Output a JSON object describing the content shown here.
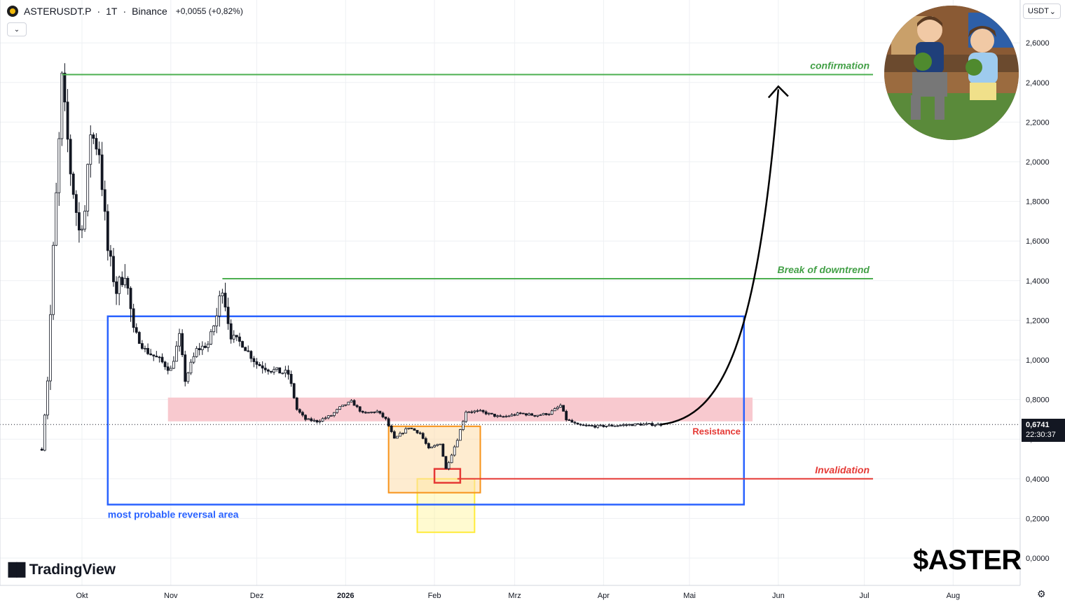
{
  "header": {
    "symbol": "ASTERUSDT.P",
    "separator1": "·",
    "interval": "1T",
    "separator2": "·",
    "exchange": "Binance",
    "change": "+0,0055 (+0,82%)",
    "collapse_icon": "chevron-down-icon"
  },
  "currency_selector": {
    "label": "USDT",
    "icon": "chevron-down-icon"
  },
  "price_tag": {
    "price": "0,6741",
    "countdown": "22:30:37"
  },
  "watermark": {
    "logo_text": "TradingView",
    "ticker_tag": "$ASTER"
  },
  "colors": {
    "candle": "#131722",
    "green_line": "#4caf50",
    "green_text": "#43a047",
    "red": "#e53935",
    "blue_box": "#2962ff",
    "pink_zone": "#f8c9cf",
    "orange_box": "#f7931a",
    "yellow_box": "#ffeb3b",
    "grid": "#eef0f3"
  },
  "chart_data": {
    "type": "candlestick",
    "y_axis": {
      "side": "right",
      "ylim": [
        -0.1,
        2.75
      ],
      "ticks": [
        "0,0000",
        "0,2000",
        "0,4000",
        "0,6000",
        "0,8000",
        "1,0000",
        "1,2000",
        "1,4000",
        "1,6000",
        "1,8000",
        "2,0000",
        "2,2000",
        "2,4000",
        "2,6000"
      ],
      "tick_values": [
        0,
        0.2,
        0.4,
        0.6,
        0.8,
        1.0,
        1.2,
        1.4,
        1.6,
        1.8,
        2.0,
        2.2,
        2.4,
        2.6
      ]
    },
    "x_axis": {
      "ticks": [
        {
          "label": "Okt",
          "date": "2025-10-01"
        },
        {
          "label": "Nov",
          "date": "2025-11-01"
        },
        {
          "label": "Dez",
          "date": "2025-12-01"
        },
        {
          "label": "2026",
          "date": "2026-01-01",
          "bold": true
        },
        {
          "label": "Feb",
          "date": "2026-02-01"
        },
        {
          "label": "Mrz",
          "date": "2026-03-01"
        },
        {
          "label": "Apr",
          "date": "2026-04-01"
        },
        {
          "label": "Mai",
          "date": "2026-05-01"
        },
        {
          "label": "Jun",
          "date": "2026-06-01"
        },
        {
          "label": "Jul",
          "date": "2026-07-01"
        },
        {
          "label": "Aug",
          "date": "2026-08-01"
        }
      ]
    },
    "grid": true,
    "last_price": 0.6741,
    "anchors": [
      [
        "2025-09-17",
        0.55
      ],
      [
        "2025-09-19",
        0.9
      ],
      [
        "2025-09-21",
        1.55
      ],
      [
        "2025-09-23",
        2.1
      ],
      [
        "2025-09-24",
        2.42
      ],
      [
        "2025-09-27",
        1.95
      ],
      [
        "2025-09-30",
        1.65
      ],
      [
        "2025-10-02",
        1.75
      ],
      [
        "2025-10-04",
        2.15
      ],
      [
        "2025-10-07",
        2.05
      ],
      [
        "2025-10-10",
        1.55
      ],
      [
        "2025-10-13",
        1.35
      ],
      [
        "2025-10-16",
        1.45
      ],
      [
        "2025-10-19",
        1.15
      ],
      [
        "2025-10-23",
        1.05
      ],
      [
        "2025-10-28",
        1.0
      ],
      [
        "2025-11-01",
        0.95
      ],
      [
        "2025-11-04",
        1.12
      ],
      [
        "2025-11-06",
        0.9
      ],
      [
        "2025-11-10",
        1.05
      ],
      [
        "2025-11-14",
        1.08
      ],
      [
        "2025-11-17",
        1.22
      ],
      [
        "2025-11-19",
        1.38
      ],
      [
        "2025-11-22",
        1.12
      ],
      [
        "2025-11-26",
        1.08
      ],
      [
        "2025-12-01",
        0.98
      ],
      [
        "2025-12-06",
        0.95
      ],
      [
        "2025-12-12",
        0.93
      ],
      [
        "2025-12-15",
        0.75
      ],
      [
        "2025-12-18",
        0.7
      ],
      [
        "2025-12-22",
        0.69
      ],
      [
        "2025-12-27",
        0.72
      ],
      [
        "2025-12-30",
        0.76
      ],
      [
        "2026-01-03",
        0.79
      ],
      [
        "2026-01-07",
        0.73
      ],
      [
        "2026-01-12",
        0.74
      ],
      [
        "2026-01-15",
        0.7
      ],
      [
        "2026-01-18",
        0.6
      ],
      [
        "2026-01-23",
        0.66
      ],
      [
        "2026-01-27",
        0.63
      ],
      [
        "2026-01-30",
        0.55
      ],
      [
        "2026-02-03",
        0.58
      ],
      [
        "2026-02-05",
        0.45
      ],
      [
        "2026-02-09",
        0.6
      ],
      [
        "2026-02-12",
        0.74
      ],
      [
        "2026-02-17",
        0.74
      ],
      [
        "2026-02-24",
        0.71
      ],
      [
        "2026-03-03",
        0.73
      ],
      [
        "2026-03-08",
        0.72
      ],
      [
        "2026-03-13",
        0.73
      ],
      [
        "2026-03-17",
        0.77
      ],
      [
        "2026-03-19",
        0.7
      ],
      [
        "2026-03-23",
        0.67
      ],
      [
        "2026-03-30",
        0.665
      ],
      [
        "2026-04-06",
        0.67
      ],
      [
        "2026-04-13",
        0.675
      ],
      [
        "2026-04-21",
        0.6741
      ]
    ],
    "annotations": {
      "blue_box": {
        "label": "most probable reversal area",
        "x0": "2025-10-10",
        "x1": "2026-05-20",
        "y0": 0.27,
        "y1": 1.22
      },
      "pink_zone": {
        "x0": "2025-10-31",
        "x1": "2026-05-23",
        "y0": 0.69,
        "y1": 0.81
      },
      "orange_box": {
        "x0": "2026-01-16",
        "x1": "2026-02-17",
        "y0": 0.33,
        "y1": 0.665
      },
      "yellow_box": {
        "x0": "2026-01-26",
        "x1": "2026-02-15",
        "y0": 0.13,
        "y1": 0.4
      },
      "red_box": {
        "x0": "2026-02-01",
        "x1": "2026-02-10",
        "y0": 0.38,
        "y1": 0.45
      },
      "lines": [
        {
          "label": "confirmation",
          "x0": "2025-09-24",
          "x1": "2026-07-01",
          "y": 2.44,
          "color": "green"
        },
        {
          "label": "Break of downtrend",
          "x0": "2025-11-19",
          "x1": "2026-07-01",
          "y": 1.41,
          "color": "green"
        },
        {
          "label": "Invalidation",
          "x0": "2026-02-09",
          "x1": "2026-07-01",
          "y": 0.4,
          "color": "red"
        }
      ],
      "resistance_label": "Resistance",
      "projection_curve": {
        "from": [
          "2026-04-21",
          0.6741
        ],
        "to": [
          "2026-06-01",
          2.38
        ],
        "arrowhead": true
      }
    }
  }
}
